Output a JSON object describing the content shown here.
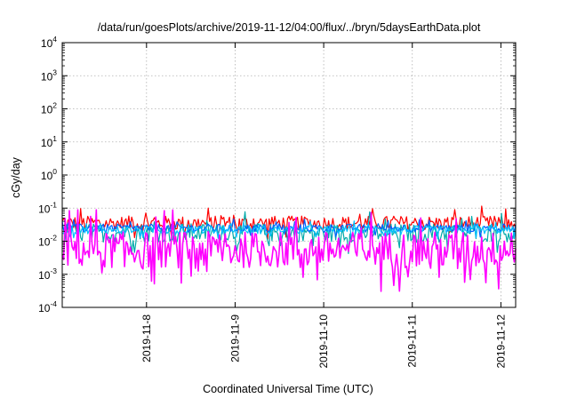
{
  "chart_data": {
    "type": "line",
    "title": "/data/run/goesPlots/archive/2019-11-12/04:00/flux/../bryn/5daysEarthData.plot",
    "xlabel": "Coordinated Universal Time (UTC)",
    "ylabel": "cGy/day",
    "yscale": "log",
    "ylim": [
      0.0001,
      10000
    ],
    "xlim": [
      "2019-11-07T01:10",
      "2019-11-12T04:00"
    ],
    "grid": true,
    "y_ticks": [
      {
        "value": 0.0001,
        "base": "10",
        "exp": "-4"
      },
      {
        "value": 0.001,
        "base": "10",
        "exp": "-3"
      },
      {
        "value": 0.01,
        "base": "10",
        "exp": "-2"
      },
      {
        "value": 0.1,
        "base": "10",
        "exp": "-1"
      },
      {
        "value": 1,
        "base": "10",
        "exp": "0"
      },
      {
        "value": 10,
        "base": "10",
        "exp": "1"
      },
      {
        "value": 100,
        "base": "10",
        "exp": "2"
      },
      {
        "value": 1000,
        "base": "10",
        "exp": "3"
      },
      {
        "value": 10000,
        "base": "10",
        "exp": "4"
      }
    ],
    "x_ticks": [
      "2019-11-8",
      "2019-11-9",
      "2019-11-10",
      "2019-11-11",
      "2019-11-12"
    ],
    "series": [
      {
        "color": "#ff0000",
        "level": 0.035,
        "spread": 0.22
      },
      {
        "color": "#00aaaa",
        "level": 0.018,
        "spread": 0.28
      },
      {
        "color": "#0060ff",
        "level": 0.025,
        "spread": 0.12
      },
      {
        "color": "#00c0ff",
        "level": 0.022,
        "spread": 0.12
      },
      {
        "color": "#ff00ff",
        "level": 0.0055,
        "spread": 0.55
      }
    ]
  }
}
